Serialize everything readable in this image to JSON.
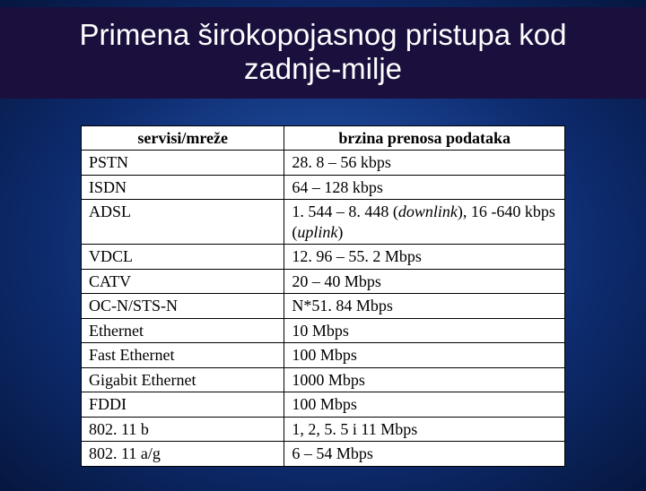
{
  "slide": {
    "title": "Primena širokopojasnog pristupa kod zadnje-milje",
    "background_gradient": {
      "center": "#2a5fb8",
      "mid": "#0d2b6e",
      "edge": "#06173f"
    },
    "title_bar_bg": "#1a0f3d",
    "title_color": "#ffffff",
    "title_fontsize": 33
  },
  "table": {
    "border_color": "#000000",
    "cell_bg": "#ffffff",
    "font_family": "Times New Roman",
    "fontsize": 18,
    "column_widths_pct": [
      42,
      58
    ],
    "columns": [
      "servisi/mreže",
      "brzina prenosa podataka"
    ],
    "rows": [
      {
        "service": "PSTN",
        "speed": "28. 8 – 56 kbps"
      },
      {
        "service": "ISDN",
        "speed": "64 – 128 kbps"
      },
      {
        "service": "ADSL",
        "speed_parts": [
          "1. 544 – 8. 448 (",
          {
            "italic": "downlink"
          },
          "), 16 -640 kbps (",
          {
            "italic": "uplink"
          },
          ")"
        ]
      },
      {
        "service": "VDCL",
        "speed": "12. 96 – 55. 2 Mbps"
      },
      {
        "service": "CATV",
        "speed": "20 – 40 Mbps"
      },
      {
        "service": "OC-N/STS-N",
        "speed": "N*51. 84 Mbps"
      },
      {
        "service": "Ethernet",
        "speed": "10 Mbps"
      },
      {
        "service": "Fast Ethernet",
        "speed": "100 Mbps"
      },
      {
        "service": "Gigabit Ethernet",
        "speed": "1000 Mbps"
      },
      {
        "service": "FDDI",
        "speed": "100 Mbps"
      },
      {
        "service": "802. 11 b",
        "speed": "1, 2, 5. 5 i 11 Mbps"
      },
      {
        "service": "802. 11 a/g",
        "speed": "6 – 54 Mbps"
      }
    ]
  }
}
